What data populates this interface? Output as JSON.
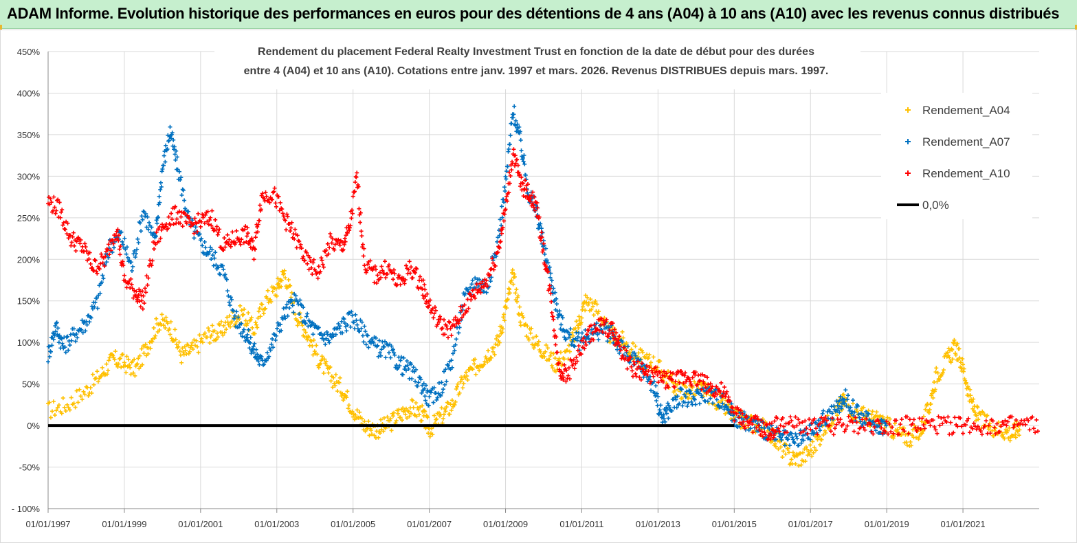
{
  "banner": {
    "title": "ADAM Informe. Evolution historique des performances en euros pour des détentions de 4 ans (A04) à 10 ans (A10) avec les revenus connus distribués"
  },
  "chart_data": {
    "type": "scatter",
    "title_line1": "Rendement du placement Federal Realty Investment Trust en fonction de la date de début pour des durées",
    "title_line2": "entre 4 (A04) et 10 ans (A10). Cotations entre janv. 1997 et mars. 2026. Revenus DISTRIBUES depuis mars. 1997.",
    "xlabel": "",
    "ylabel": "",
    "xlim": [
      1997.0,
      2023.0
    ],
    "ylim": [
      -100,
      450
    ],
    "y_ticks": [
      -100,
      -50,
      0,
      50,
      100,
      150,
      200,
      250,
      300,
      350,
      400,
      450
    ],
    "y_tick_labels": [
      "- 100%",
      "-50%",
      "0%",
      "50%",
      "100%",
      "150%",
      "200%",
      "250%",
      "300%",
      "350%",
      "400%",
      "450%"
    ],
    "x_ticks": [
      1997,
      1999,
      2001,
      2003,
      2005,
      2007,
      2009,
      2011,
      2013,
      2015,
      2017,
      2019,
      2021
    ],
    "x_tick_labels": [
      "01/01/1997",
      "01/01/1999",
      "01/01/2001",
      "01/01/2003",
      "01/01/2005",
      "01/01/2007",
      "01/01/2009",
      "01/01/2011",
      "01/01/2013",
      "01/01/2015",
      "01/01/2017",
      "01/01/2019",
      "01/01/2021"
    ],
    "grid": true,
    "legend_position": "top-right",
    "series": [
      {
        "name": "Rendement_A04",
        "color": "#ffc000",
        "marker": "plus",
        "points": [
          [
            1997.0,
            18
          ],
          [
            1997.5,
            25
          ],
          [
            1998.0,
            42
          ],
          [
            1998.4,
            62
          ],
          [
            1998.7,
            80
          ],
          [
            1999.0,
            75
          ],
          [
            1999.3,
            68
          ],
          [
            1999.6,
            95
          ],
          [
            1999.9,
            125
          ],
          [
            2000.2,
            120
          ],
          [
            2000.5,
            85
          ],
          [
            2000.8,
            92
          ],
          [
            2001.2,
            110
          ],
          [
            2001.5,
            112
          ],
          [
            2001.8,
            128
          ],
          [
            2002.1,
            135
          ],
          [
            2002.4,
            115
          ],
          [
            2002.7,
            150
          ],
          [
            2003.0,
            165
          ],
          [
            2003.2,
            185
          ],
          [
            2003.5,
            135
          ],
          [
            2003.8,
            110
          ],
          [
            2004.1,
            80
          ],
          [
            2004.4,
            60
          ],
          [
            2004.7,
            45
          ],
          [
            2005.0,
            20
          ],
          [
            2005.3,
            0
          ],
          [
            2005.6,
            -5
          ],
          [
            2005.9,
            0
          ],
          [
            2006.2,
            12
          ],
          [
            2006.5,
            22
          ],
          [
            2006.8,
            15
          ],
          [
            2007.0,
            -5
          ],
          [
            2007.3,
            10
          ],
          [
            2007.6,
            25
          ],
          [
            2007.9,
            55
          ],
          [
            2008.2,
            70
          ],
          [
            2008.5,
            85
          ],
          [
            2008.8,
            100
          ],
          [
            2009.0,
            140
          ],
          [
            2009.2,
            180
          ],
          [
            2009.4,
            130
          ],
          [
            2009.7,
            105
          ],
          [
            2010.0,
            90
          ],
          [
            2010.3,
            75
          ],
          [
            2010.6,
            85
          ],
          [
            2010.9,
            120
          ],
          [
            2011.1,
            150
          ],
          [
            2011.4,
            140
          ],
          [
            2011.7,
            110
          ],
          [
            2012.0,
            105
          ],
          [
            2012.3,
            90
          ],
          [
            2012.6,
            80
          ],
          [
            2012.9,
            75
          ],
          [
            2013.2,
            60
          ],
          [
            2013.5,
            45
          ],
          [
            2013.8,
            40
          ],
          [
            2014.1,
            45
          ],
          [
            2014.4,
            35
          ],
          [
            2014.7,
            25
          ],
          [
            2015.0,
            10
          ],
          [
            2015.3,
            5
          ],
          [
            2015.6,
            0
          ],
          [
            2015.9,
            -5
          ],
          [
            2016.2,
            -25
          ],
          [
            2016.5,
            -40
          ],
          [
            2016.8,
            -38
          ],
          [
            2017.1,
            -25
          ],
          [
            2017.4,
            0
          ],
          [
            2017.7,
            20
          ],
          [
            2017.9,
            30
          ],
          [
            2018.2,
            15
          ],
          [
            2018.5,
            10
          ],
          [
            2018.8,
            5
          ],
          [
            2019.0,
            0
          ],
          [
            2019.3,
            -10
          ],
          [
            2019.6,
            -15
          ],
          [
            2019.9,
            -5
          ],
          [
            2020.1,
            20
          ],
          [
            2020.3,
            60
          ],
          [
            2020.6,
            80
          ],
          [
            2020.8,
            95
          ],
          [
            2021.0,
            70
          ],
          [
            2021.2,
            30
          ],
          [
            2021.4,
            10
          ],
          [
            2021.7,
            0
          ],
          [
            2022.0,
            -5
          ],
          [
            2022.3,
            -10
          ],
          [
            2022.5,
            0
          ]
        ]
      },
      {
        "name": "Rendement_A07",
        "color": "#0070c0",
        "marker": "plus",
        "points": [
          [
            1997.0,
            85
          ],
          [
            1997.2,
            120
          ],
          [
            1997.4,
            95
          ],
          [
            1997.7,
            110
          ],
          [
            1998.0,
            125
          ],
          [
            1998.3,
            150
          ],
          [
            1998.6,
            215
          ],
          [
            1998.9,
            230
          ],
          [
            1999.2,
            190
          ],
          [
            1999.5,
            260
          ],
          [
            1999.8,
            220
          ],
          [
            2000.0,
            310
          ],
          [
            2000.2,
            355
          ],
          [
            2000.4,
            310
          ],
          [
            2000.7,
            245
          ],
          [
            2001.0,
            220
          ],
          [
            2001.3,
            205
          ],
          [
            2001.6,
            185
          ],
          [
            2001.9,
            130
          ],
          [
            2002.2,
            110
          ],
          [
            2002.4,
            90
          ],
          [
            2002.6,
            75
          ],
          [
            2002.9,
            100
          ],
          [
            2003.2,
            135
          ],
          [
            2003.5,
            150
          ],
          [
            2003.8,
            125
          ],
          [
            2004.1,
            110
          ],
          [
            2004.4,
            105
          ],
          [
            2004.7,
            120
          ],
          [
            2005.0,
            130
          ],
          [
            2005.3,
            110
          ],
          [
            2005.6,
            95
          ],
          [
            2005.9,
            90
          ],
          [
            2006.2,
            75
          ],
          [
            2006.5,
            65
          ],
          [
            2006.8,
            50
          ],
          [
            2007.0,
            30
          ],
          [
            2007.3,
            45
          ],
          [
            2007.6,
            80
          ],
          [
            2007.9,
            150
          ],
          [
            2008.2,
            175
          ],
          [
            2008.5,
            165
          ],
          [
            2008.8,
            220
          ],
          [
            2009.0,
            290
          ],
          [
            2009.2,
            380
          ],
          [
            2009.4,
            340
          ],
          [
            2009.6,
            280
          ],
          [
            2009.8,
            260
          ],
          [
            2010.0,
            215
          ],
          [
            2010.2,
            175
          ],
          [
            2010.4,
            130
          ],
          [
            2010.6,
            110
          ],
          [
            2010.9,
            100
          ],
          [
            2011.2,
            110
          ],
          [
            2011.5,
            115
          ],
          [
            2011.8,
            110
          ],
          [
            2012.0,
            95
          ],
          [
            2012.3,
            80
          ],
          [
            2012.6,
            70
          ],
          [
            2012.9,
            45
          ],
          [
            2013.1,
            10
          ],
          [
            2013.3,
            20
          ],
          [
            2013.6,
            35
          ],
          [
            2013.9,
            30
          ],
          [
            2014.2,
            40
          ],
          [
            2014.5,
            35
          ],
          [
            2014.8,
            25
          ],
          [
            2015.0,
            10
          ],
          [
            2015.3,
            5
          ],
          [
            2015.6,
            0
          ],
          [
            2015.9,
            -8
          ],
          [
            2016.2,
            -15
          ],
          [
            2016.5,
            -20
          ],
          [
            2016.8,
            -15
          ],
          [
            2017.1,
            -5
          ],
          [
            2017.4,
            10
          ],
          [
            2017.7,
            20
          ],
          [
            2017.9,
            35
          ],
          [
            2018.2,
            15
          ],
          [
            2018.5,
            5
          ],
          [
            2018.8,
            0
          ],
          [
            2019.0,
            0
          ]
        ]
      },
      {
        "name": "Rendement_A10",
        "color": "#ff0000",
        "marker": "plus",
        "points": [
          [
            1997.0,
            270
          ],
          [
            1997.3,
            260
          ],
          [
            1997.6,
            225
          ],
          [
            1997.9,
            215
          ],
          [
            1998.2,
            190
          ],
          [
            1998.5,
            200
          ],
          [
            1998.8,
            240
          ],
          [
            1999.0,
            175
          ],
          [
            1999.3,
            160
          ],
          [
            1999.5,
            150
          ],
          [
            1999.8,
            220
          ],
          [
            2000.1,
            245
          ],
          [
            2000.4,
            255
          ],
          [
            2000.7,
            240
          ],
          [
            2001.0,
            245
          ],
          [
            2001.3,
            250
          ],
          [
            2001.6,
            215
          ],
          [
            2001.9,
            225
          ],
          [
            2002.2,
            230
          ],
          [
            2002.4,
            210
          ],
          [
            2002.6,
            275
          ],
          [
            2002.9,
            280
          ],
          [
            2003.2,
            250
          ],
          [
            2003.5,
            225
          ],
          [
            2003.8,
            195
          ],
          [
            2004.1,
            185
          ],
          [
            2004.4,
            220
          ],
          [
            2004.7,
            215
          ],
          [
            2004.9,
            235
          ],
          [
            2005.1,
            300
          ],
          [
            2005.3,
            195
          ],
          [
            2005.6,
            180
          ],
          [
            2005.9,
            190
          ],
          [
            2006.2,
            170
          ],
          [
            2006.5,
            190
          ],
          [
            2006.8,
            170
          ],
          [
            2007.0,
            145
          ],
          [
            2007.3,
            120
          ],
          [
            2007.6,
            115
          ],
          [
            2007.9,
            140
          ],
          [
            2008.2,
            160
          ],
          [
            2008.5,
            175
          ],
          [
            2008.8,
            210
          ],
          [
            2009.0,
            260
          ],
          [
            2009.2,
            330
          ],
          [
            2009.4,
            290
          ],
          [
            2009.6,
            280
          ],
          [
            2009.8,
            265
          ],
          [
            2010.0,
            210
          ],
          [
            2010.2,
            150
          ],
          [
            2010.4,
            70
          ],
          [
            2010.6,
            60
          ],
          [
            2010.9,
            85
          ],
          [
            2011.2,
            110
          ],
          [
            2011.5,
            120
          ],
          [
            2011.8,
            115
          ],
          [
            2012.0,
            95
          ],
          [
            2012.3,
            70
          ],
          [
            2012.6,
            65
          ],
          [
            2012.9,
            60
          ],
          [
            2013.2,
            55
          ],
          [
            2013.5,
            55
          ],
          [
            2013.8,
            60
          ],
          [
            2014.1,
            55
          ],
          [
            2014.4,
            45
          ],
          [
            2014.7,
            40
          ],
          [
            2015.0,
            15
          ],
          [
            2015.3,
            5
          ],
          [
            2015.6,
            0
          ],
          [
            2015.9,
            -10
          ],
          [
            2016.1,
            0
          ],
          [
            2016.5,
            0
          ],
          [
            2017.0,
            0
          ],
          [
            2017.5,
            0
          ],
          [
            2018.0,
            0
          ],
          [
            2018.5,
            0
          ],
          [
            2019.0,
            0
          ],
          [
            2019.5,
            0
          ],
          [
            2020.0,
            0
          ],
          [
            2020.5,
            0
          ],
          [
            2021.0,
            0
          ],
          [
            2021.5,
            0
          ],
          [
            2022.0,
            0
          ],
          [
            2022.5,
            0
          ],
          [
            2023.0,
            0
          ]
        ]
      },
      {
        "name": "0,0%",
        "color": "#000000",
        "marker": "line",
        "points": [
          [
            1997.0,
            0
          ],
          [
            2015.0,
            0
          ]
        ]
      }
    ]
  }
}
